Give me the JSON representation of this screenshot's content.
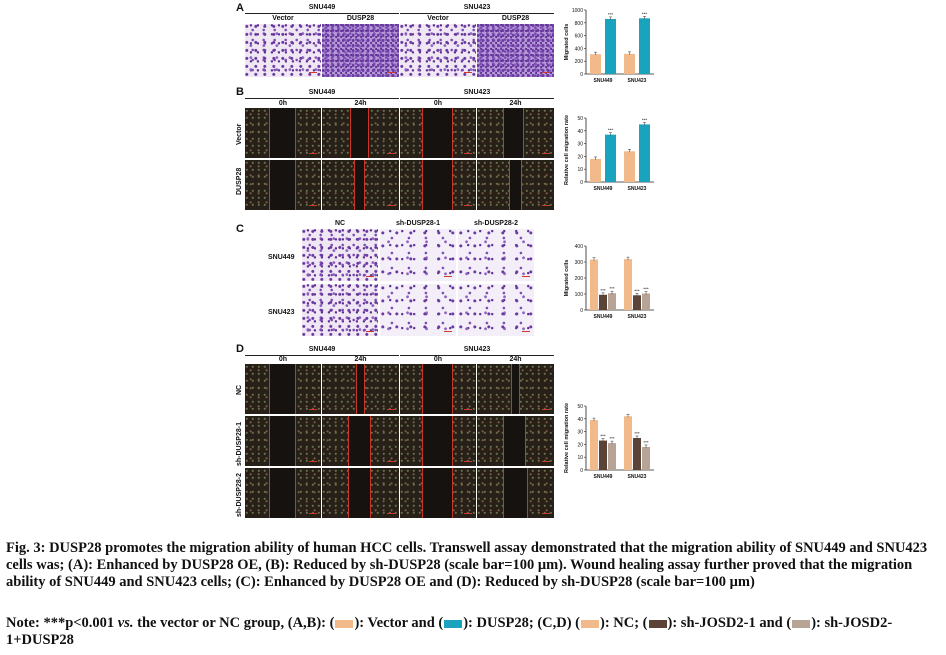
{
  "panels": {
    "A": {
      "letter": "A",
      "cell_lines": [
        "SNU449",
        "SNU423"
      ],
      "groups": [
        "Vector",
        "DUSP28",
        "Vector",
        "DUSP28"
      ]
    },
    "B": {
      "letter": "B",
      "cell_lines": [
        "SNU449",
        "SNU423"
      ],
      "times": [
        "0h",
        "24h",
        "0h",
        "24h"
      ],
      "rows": [
        "Vector",
        "DUSP28"
      ]
    },
    "C": {
      "letter": "C",
      "groups": [
        "NC",
        "sh-DUSP28-1",
        "sh-DUSP28-2"
      ],
      "rows": [
        "SNU449",
        "SNU423"
      ]
    },
    "D": {
      "letter": "D",
      "cell_lines": [
        "SNU449",
        "SNU423"
      ],
      "times": [
        "0h",
        "24h",
        "0h",
        "24h"
      ],
      "rows": [
        "NC",
        "sh-DUSP28-1",
        "sh-DUSP28-2"
      ]
    }
  },
  "colors": {
    "vector": "#f2b98a",
    "dusp28": "#1aa3bd",
    "nc": "#f2b98a",
    "sh1": "#5a4437",
    "sh2": "#b8a397"
  },
  "chart_data": [
    {
      "id": "A",
      "type": "bar",
      "categories": [
        "SNU449",
        "SNU423"
      ],
      "series": [
        {
          "values": [
            310,
            315
          ]
        },
        {
          "values": [
            860,
            870
          ]
        }
      ],
      "ylabel": "Migrated cells",
      "ylim": [
        0,
        1000
      ],
      "yticks": [
        "0",
        "200",
        "400",
        "600",
        "800",
        "1000"
      ],
      "sig": [
        "***",
        "***"
      ]
    },
    {
      "id": "B",
      "type": "bar",
      "categories": [
        "SNU449",
        "SNU423"
      ],
      "series": [
        {
          "values": [
            18,
            24
          ]
        },
        {
          "values": [
            37,
            45
          ]
        }
      ],
      "ylabel": "Relative cell migration rate",
      "ylim": [
        0,
        50
      ],
      "yticks": [
        "0",
        "10",
        "20",
        "30",
        "40",
        "50"
      ],
      "sig": [
        "***",
        "***"
      ]
    },
    {
      "id": "C",
      "type": "bar",
      "categories": [
        "SNU449",
        "SNU423"
      ],
      "series": [
        {
          "values": [
            315,
            318
          ]
        },
        {
          "values": [
            95,
            92
          ]
        },
        {
          "values": [
            105,
            103
          ]
        }
      ],
      "ylabel": "Migrated cells",
      "ylim": [
        0,
        400
      ],
      "yticks": [
        "0",
        "100",
        "200",
        "300",
        "400"
      ],
      "sig": [
        "***",
        "***",
        "***",
        "***"
      ]
    },
    {
      "id": "D",
      "type": "bar",
      "categories": [
        "SNU449",
        "SNU423"
      ],
      "series": [
        {
          "values": [
            39,
            42
          ]
        },
        {
          "values": [
            23,
            25
          ]
        },
        {
          "values": [
            21,
            18
          ]
        }
      ],
      "ylabel": "Relative cell migration rate",
      "ylim": [
        0,
        50
      ],
      "yticks": [
        "0",
        "10",
        "20",
        "30",
        "40",
        "50"
      ],
      "sig": [
        "***",
        "***",
        "***",
        "***"
      ]
    }
  ],
  "caption": {
    "text": "Fig. 3: DUSP28 promotes the migration ability of human HCC cells. Transwell assay demonstrated that the migration ability of SNU449 and SNU423 cells was; (A): Enhanced by DUSP28 OE, (B): Reduced by sh-DUSP28 (scale bar=100 μm). Wound healing assay further proved that the migration ability of SNU449 and SNU423 cells; (C): Enhanced by DUSP28 OE and (D): Reduced by sh-DUSP28 (scale bar=100 μm)",
    "note_start": "Note: ***p<0.001",
    "note_vs": "vs.",
    "note_mid": "the vector or NC group, (A,B): (",
    "note_vector": "): Vector and (",
    "note_dusp28": "): DUSP28; (C,D) (",
    "note_nc": "): NC; (",
    "note_sh1": "): sh-JOSD2-1 and (",
    "note_sh2": "): sh-JOSD2-1+DUSP28"
  }
}
